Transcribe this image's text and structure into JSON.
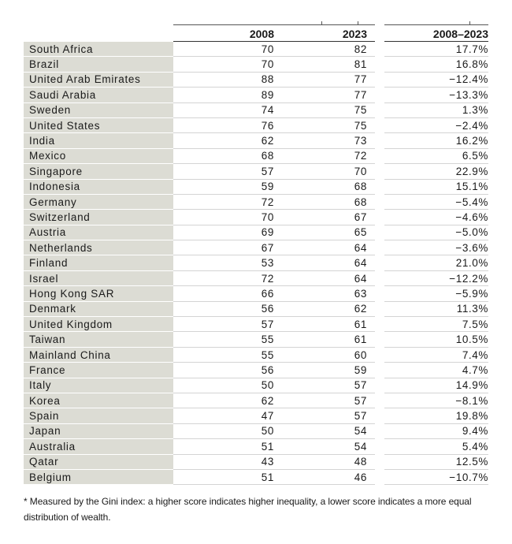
{
  "table": {
    "headers": [
      "",
      "2008",
      "2023",
      "2008–2023"
    ],
    "rows": [
      [
        "South Africa",
        "70",
        "82",
        "17.7%"
      ],
      [
        "Brazil",
        "70",
        "81",
        "16.8%"
      ],
      [
        "United Arab Emirates",
        "88",
        "77",
        "−12.4%"
      ],
      [
        "Saudi Arabia",
        "89",
        "77",
        "−13.3%"
      ],
      [
        "Sweden",
        "74",
        "75",
        "1.3%"
      ],
      [
        "United States",
        "76",
        "75",
        "−2.4%"
      ],
      [
        "India",
        "62",
        "73",
        "16.2%"
      ],
      [
        "Mexico",
        "68",
        "72",
        "6.5%"
      ],
      [
        "Singapore",
        "57",
        "70",
        "22.9%"
      ],
      [
        "Indonesia",
        "59",
        "68",
        "15.1%"
      ],
      [
        "Germany",
        "72",
        "68",
        "−5.4%"
      ],
      [
        "Switzerland",
        "70",
        "67",
        "−4.6%"
      ],
      [
        "Austria",
        "69",
        "65",
        "−5.0%"
      ],
      [
        "Netherlands",
        "67",
        "64",
        "−3.6%"
      ],
      [
        "Finland",
        "53",
        "64",
        "21.0%"
      ],
      [
        "Israel",
        "72",
        "64",
        "−12.2%"
      ],
      [
        "Hong Kong SAR",
        "66",
        "63",
        "−5.9%"
      ],
      [
        "Denmark",
        "56",
        "62",
        "11.3%"
      ],
      [
        "United Kingdom",
        "57",
        "61",
        "7.5%"
      ],
      [
        "Taiwan",
        "55",
        "61",
        "10.5%"
      ],
      [
        "Mainland China",
        "55",
        "60",
        "7.4%"
      ],
      [
        "France",
        "56",
        "59",
        "4.7%"
      ],
      [
        "Italy",
        "50",
        "57",
        "14.9%"
      ],
      [
        "Korea",
        "62",
        "57",
        "−8.1%"
      ],
      [
        "Spain",
        "47",
        "57",
        "19.8%"
      ],
      [
        "Japan",
        "50",
        "54",
        "9.4%"
      ],
      [
        "Australia",
        "51",
        "54",
        "5.4%"
      ],
      [
        "Qatar",
        "43",
        "48",
        "12.5%"
      ],
      [
        "Belgium",
        "51",
        "46",
        "−10.7%"
      ]
    ]
  },
  "footnote": "* Measured by the Gini index: a higher score indicates higher inequality, a lower score indicates a more equal distribution of wealth."
}
